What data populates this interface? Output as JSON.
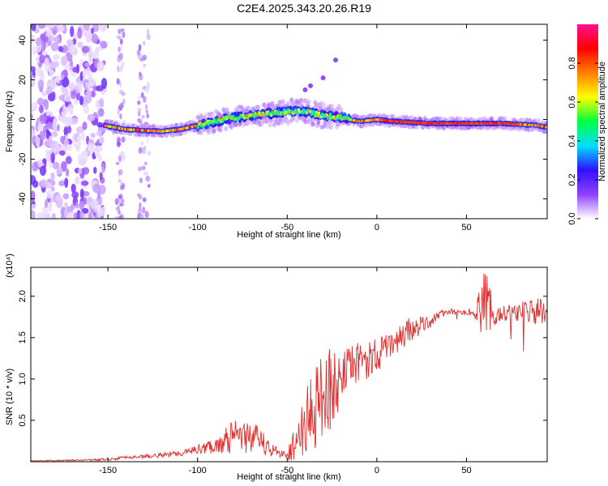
{
  "title": "C2E4.2025.343.20.26.R19",
  "colors": {
    "snr_line": "#e03030",
    "colorbar": [
      "#ffffff",
      "#9040ff",
      "#3010ff",
      "#00e0ff",
      "#00ff40",
      "#ffff00",
      "#ff8000",
      "#ff0000",
      "#ff1090"
    ]
  },
  "chart_data": [
    {
      "type": "heatmap",
      "title": "C2E4.2025.343.20.26.R19",
      "xlabel": "Height of straight line (km)",
      "ylabel": "Frequency (Hz)",
      "xlim": [
        -193,
        95
      ],
      "ylim": [
        -50,
        48
      ],
      "x_ticks": [
        -150,
        -100,
        -50,
        0,
        50
      ],
      "y_ticks": [
        -40,
        -20,
        0,
        20,
        40
      ],
      "colorbar": {
        "label": "Normalized spectral amplitude",
        "range": [
          0,
          1
        ],
        "ticks": [
          0.0,
          0.2,
          0.4,
          0.6,
          0.8
        ]
      },
      "features": {
        "noise_region_x": [
          -193,
          -152
        ],
        "signal_start_x": -152,
        "signal_track": {
          "x": [
            -152,
            -140,
            -120,
            -110,
            -100,
            -90,
            -80,
            -70,
            -60,
            -50,
            -40,
            -30,
            -20,
            -10,
            0,
            10,
            30,
            50,
            70,
            90,
            95
          ],
          "y": [
            -3,
            -5,
            -6,
            -5,
            -3,
            -1,
            1,
            2,
            3,
            4,
            4,
            2,
            1,
            -1,
            0,
            -1,
            -2,
            -2,
            -2,
            -3,
            -4
          ]
        },
        "outlier_points": [
          {
            "x": -40,
            "y": 15
          },
          {
            "x": -37,
            "y": 17
          },
          {
            "x": -30,
            "y": 21
          },
          {
            "x": -23,
            "y": 30
          }
        ]
      }
    },
    {
      "type": "line",
      "xlabel": "Height of straight line (km)",
      "ylabel": "SNR (10 * v/v)",
      "y_multiplier": "(x10⁴)",
      "xlim": [
        -193,
        95
      ],
      "ylim": [
        0,
        2.35
      ],
      "x_ticks": [
        -150,
        -100,
        -50,
        0,
        50
      ],
      "y_ticks": [
        0.5,
        1.0,
        1.5,
        2.0
      ],
      "series": [
        {
          "envelope_x": [
            -193,
            -160,
            -150,
            -140,
            -120,
            -105,
            -100,
            -90,
            -80,
            -70,
            -60,
            -55,
            -50,
            -45,
            -40,
            -35,
            -30,
            -25,
            -20,
            -15,
            -10,
            -5,
            0,
            5,
            10,
            15,
            20,
            25,
            30,
            35,
            40,
            45,
            50,
            55,
            60,
            63,
            65,
            70,
            80,
            90,
            95
          ],
          "envelope_y": [
            0.01,
            0.02,
            0.03,
            0.05,
            0.08,
            0.12,
            0.15,
            0.2,
            0.3,
            0.3,
            0.18,
            0.1,
            0.08,
            0.25,
            0.45,
            0.6,
            0.85,
            0.9,
            1.0,
            1.1,
            1.2,
            1.25,
            1.3,
            1.35,
            1.45,
            1.55,
            1.6,
            1.65,
            1.7,
            1.78,
            1.82,
            1.8,
            1.8,
            1.82,
            1.85,
            1.8,
            1.75,
            1.8,
            1.82,
            1.8,
            1.8
          ],
          "noise_amplitude": [
            0.005,
            0.01,
            0.02,
            0.02,
            0.03,
            0.04,
            0.06,
            0.1,
            0.2,
            0.2,
            0.12,
            0.05,
            0.06,
            0.25,
            0.4,
            0.5,
            0.6,
            0.5,
            0.3,
            0.3,
            0.25,
            0.25,
            0.2,
            0.2,
            0.15,
            0.2,
            0.15,
            0.1,
            0.08,
            0.05,
            0.04,
            0.03,
            0.03,
            0.1,
            0.45,
            0.4,
            0.12,
            0.1,
            0.12,
            0.2,
            0.1
          ]
        }
      ]
    }
  ]
}
